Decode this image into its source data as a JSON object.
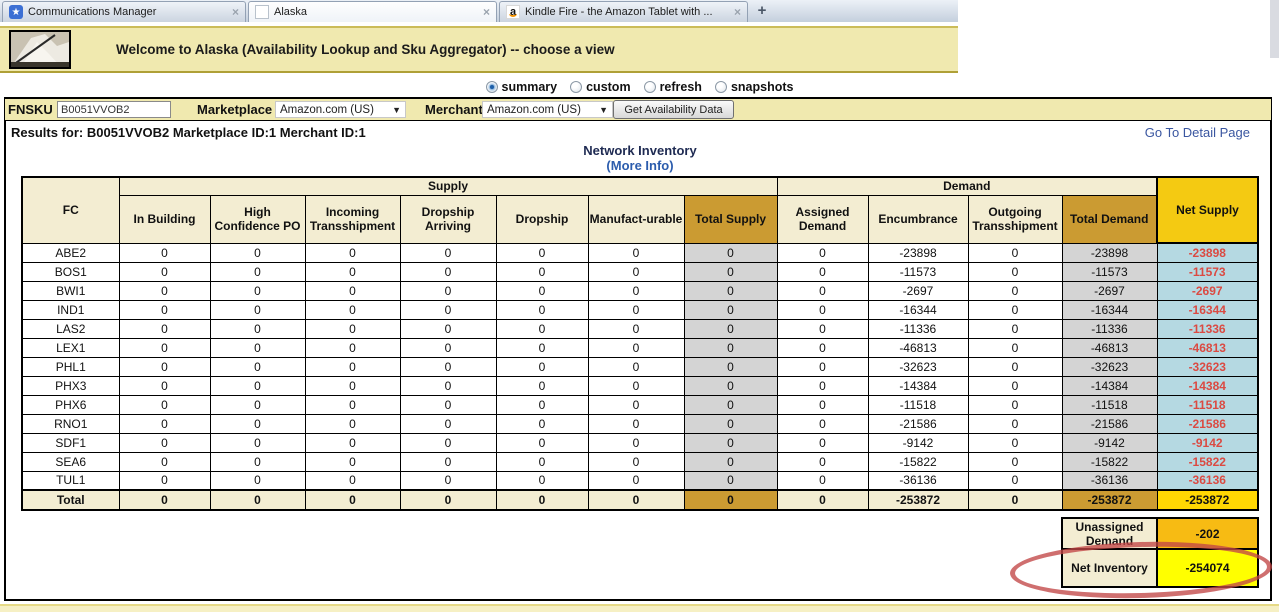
{
  "browser": {
    "tabs": [
      {
        "title": "Communications Manager",
        "icon": "star-favicon",
        "active": false
      },
      {
        "title": "Alaska",
        "icon": "page-favicon",
        "active": true
      },
      {
        "title": "Kindle Fire - the Amazon Tablet with ...",
        "icon": "amazon-favicon",
        "active": false
      }
    ],
    "new_tab_label": "+"
  },
  "icons": {
    "close": "×",
    "dropdown_arrow": "▼",
    "star": "★",
    "amazon_a": "a"
  },
  "banner": {
    "title": "Welcome to Alaska (Availability Lookup and Sku Aggregator) -- choose a view"
  },
  "view_options": {
    "options": [
      "summary",
      "custom",
      "refresh",
      "snapshots"
    ],
    "selected": "summary"
  },
  "query_bar": {
    "fnsku_label": "FNSKU",
    "fnsku_value": "B0051VVOB2",
    "marketplace_label": "Marketplace",
    "marketplace_value": "Amazon.com (US)",
    "merchant_label": "Merchant",
    "merchant_value": "Amazon.com (US)",
    "submit_label": "Get Availability Data"
  },
  "results": {
    "summary": "Results for: B0051VVOB2 Marketplace ID:1 Merchant ID:1",
    "detail_link": "Go To Detail Page",
    "table_title": "Network Inventory",
    "more_info": "(More Info)"
  },
  "network_table": {
    "corner_header": "FC",
    "group_headers": [
      {
        "label": "Supply",
        "span": 7
      },
      {
        "label": "Demand",
        "span": 4
      }
    ],
    "net_supply_header": "Net Supply",
    "sub_headers": [
      "In Building",
      "High Confidence PO",
      "Incoming Transshipment",
      "Dropship Arriving",
      "Dropship",
      "Manufact-urable",
      "Total Supply",
      "Assigned Demand",
      "Encumbrance",
      "Outgoing Transshipment",
      "Total Demand"
    ],
    "rows": [
      [
        "ABE2",
        "0",
        "0",
        "0",
        "0",
        "0",
        "0",
        "0",
        "0",
        "-23898",
        "0",
        "-23898",
        "-23898"
      ],
      [
        "BOS1",
        "0",
        "0",
        "0",
        "0",
        "0",
        "0",
        "0",
        "0",
        "-11573",
        "0",
        "-11573",
        "-11573"
      ],
      [
        "BWI1",
        "0",
        "0",
        "0",
        "0",
        "0",
        "0",
        "0",
        "0",
        "-2697",
        "0",
        "-2697",
        "-2697"
      ],
      [
        "IND1",
        "0",
        "0",
        "0",
        "0",
        "0",
        "0",
        "0",
        "0",
        "-16344",
        "0",
        "-16344",
        "-16344"
      ],
      [
        "LAS2",
        "0",
        "0",
        "0",
        "0",
        "0",
        "0",
        "0",
        "0",
        "-11336",
        "0",
        "-11336",
        "-11336"
      ],
      [
        "LEX1",
        "0",
        "0",
        "0",
        "0",
        "0",
        "0",
        "0",
        "0",
        "-46813",
        "0",
        "-46813",
        "-46813"
      ],
      [
        "PHL1",
        "0",
        "0",
        "0",
        "0",
        "0",
        "0",
        "0",
        "0",
        "-32623",
        "0",
        "-32623",
        "-32623"
      ],
      [
        "PHX3",
        "0",
        "0",
        "0",
        "0",
        "0",
        "0",
        "0",
        "0",
        "-14384",
        "0",
        "-14384",
        "-14384"
      ],
      [
        "PHX6",
        "0",
        "0",
        "0",
        "0",
        "0",
        "0",
        "0",
        "0",
        "-11518",
        "0",
        "-11518",
        "-11518"
      ],
      [
        "RNO1",
        "0",
        "0",
        "0",
        "0",
        "0",
        "0",
        "0",
        "0",
        "-21586",
        "0",
        "-21586",
        "-21586"
      ],
      [
        "SDF1",
        "0",
        "0",
        "0",
        "0",
        "0",
        "0",
        "0",
        "0",
        "-9142",
        "0",
        "-9142",
        "-9142"
      ],
      [
        "SEA6",
        "0",
        "0",
        "0",
        "0",
        "0",
        "0",
        "0",
        "0",
        "-15822",
        "0",
        "-15822",
        "-15822"
      ],
      [
        "TUL1",
        "0",
        "0",
        "0",
        "0",
        "0",
        "0",
        "0",
        "0",
        "-36136",
        "0",
        "-36136",
        "-36136"
      ]
    ],
    "total_row": [
      "Total",
      "0",
      "0",
      "0",
      "0",
      "0",
      "0",
      "0",
      "0",
      "-253872",
      "0",
      "-253872",
      "-253872"
    ],
    "footer": {
      "unassigned_label": "Unassigned Demand",
      "unassigned_value": "-202",
      "net_inventory_label": "Net Inventory",
      "net_inventory_value": "-254074"
    }
  },
  "colors": {
    "bar_yellow": "#F0E9AF",
    "header_cream": "#F3EDD2",
    "header_gold": "#CB9B32",
    "net_supply_yellow": "#F4CA12",
    "total_supply_gray": "#D4D4D4",
    "net_supply_blue": "#B5D9E2",
    "negative_red": "#DB4A42",
    "total_yellow": "#FFD703",
    "unassigned_amber": "#F7BB13",
    "net_inventory_yellow": "#FFFF00",
    "annotation_red": "#C14646",
    "link_blue": "#2B5CAD"
  }
}
